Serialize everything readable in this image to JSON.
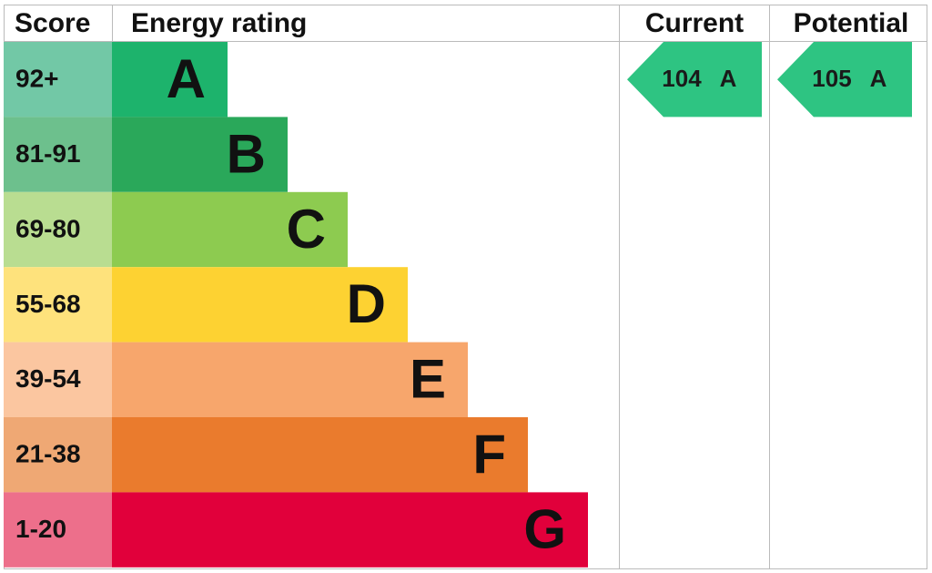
{
  "headers": {
    "score": "Score",
    "rating": "Energy rating",
    "current": "Current",
    "potential": "Potential"
  },
  "bands": [
    {
      "score": "92+",
      "letter": "A",
      "color": "#1db36c",
      "score_color": "#72c8a6"
    },
    {
      "score": "81-91",
      "letter": "B",
      "color": "#2aa85a",
      "score_color": "#6dc08d"
    },
    {
      "score": "69-80",
      "letter": "C",
      "color": "#8dcb50",
      "score_color": "#b9dd91"
    },
    {
      "score": "55-68",
      "letter": "D",
      "color": "#fdd232",
      "score_color": "#fee27c"
    },
    {
      "score": "39-54",
      "letter": "E",
      "color": "#f7a66c",
      "score_color": "#fbc6a0"
    },
    {
      "score": "21-38",
      "letter": "F",
      "color": "#ea7b2d",
      "score_color": "#efa874"
    },
    {
      "score": "1-20",
      "letter": "G",
      "color": "#e1003b",
      "score_color": "#ed6f8b"
    }
  ],
  "current": {
    "value": 104,
    "letter": "A",
    "color": "#2ec482"
  },
  "potential": {
    "value": 105,
    "letter": "A",
    "color": "#2ec482"
  }
}
